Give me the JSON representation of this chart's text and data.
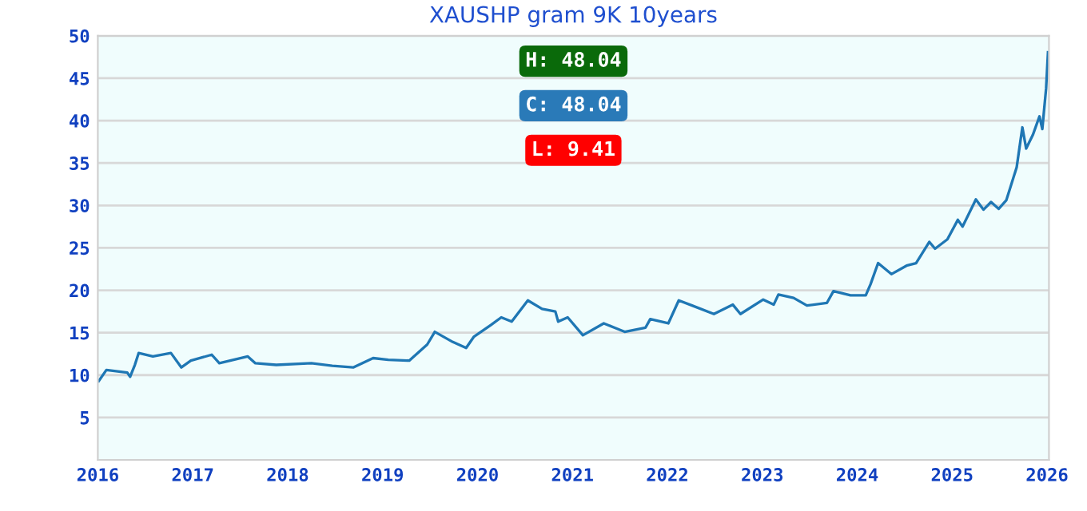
{
  "chart_data": {
    "type": "line",
    "title": "XAUSHP gram 9K 10years",
    "x": [
      2016.01,
      2016.09,
      2016.31,
      2016.34,
      2016.39,
      2016.43,
      2016.58,
      2016.77,
      2016.88,
      2016.98,
      2017.2,
      2017.28,
      2017.58,
      2017.66,
      2017.88,
      2018.25,
      2018.47,
      2018.69,
      2018.9,
      2019.06,
      2019.28,
      2019.47,
      2019.55,
      2019.74,
      2019.88,
      2019.96,
      2020.14,
      2020.25,
      2020.36,
      2020.53,
      2020.68,
      2020.82,
      2020.85,
      2020.95,
      2021.11,
      2021.33,
      2021.44,
      2021.55,
      2021.77,
      2021.82,
      2022.01,
      2022.12,
      2022.26,
      2022.49,
      2022.69,
      2022.77,
      2023.01,
      2023.12,
      2023.17,
      2023.33,
      2023.47,
      2023.68,
      2023.75,
      2023.93,
      2024.09,
      2024.14,
      2024.22,
      2024.36,
      2024.52,
      2024.62,
      2024.76,
      2024.82,
      2024.95,
      2025.06,
      2025.11,
      2025.25,
      2025.33,
      2025.41,
      2025.49,
      2025.57,
      2025.61,
      2025.68,
      2025.74,
      2025.78,
      2025.85,
      2025.92,
      2025.95,
      2025.99,
      2026.01
    ],
    "series": [
      {
        "color": "#1f77b4",
        "values": [
          9.3,
          10.6,
          10.3,
          9.8,
          11.2,
          12.6,
          12.2,
          12.6,
          10.9,
          11.7,
          12.4,
          11.4,
          12.2,
          11.4,
          11.2,
          11.4,
          11.1,
          10.9,
          12.0,
          11.8,
          11.7,
          13.6,
          15.1,
          13.9,
          13.2,
          14.5,
          15.9,
          16.8,
          16.3,
          18.8,
          17.8,
          17.5,
          16.3,
          16.8,
          14.7,
          16.1,
          15.6,
          15.1,
          15.6,
          16.6,
          16.1,
          18.8,
          18.2,
          17.2,
          18.3,
          17.2,
          18.9,
          18.3,
          19.5,
          19.1,
          18.2,
          18.5,
          19.9,
          19.4,
          19.4,
          20.7,
          23.2,
          21.9,
          22.9,
          23.2,
          25.7,
          24.9,
          26.0,
          28.3,
          27.5,
          30.7,
          29.5,
          30.4,
          29.6,
          30.6,
          32.0,
          34.5,
          39.2,
          36.7,
          38.3,
          40.5,
          39.0,
          43.8,
          48.04
        ]
      }
    ],
    "xlim": [
      2016,
      2026.02
    ],
    "xticks": [
      2016,
      2017,
      2018,
      2019,
      2020,
      2021,
      2022,
      2023,
      2024,
      2025,
      2026
    ],
    "ylim": [
      0,
      50
    ],
    "yticks": [
      5,
      10,
      15,
      20,
      25,
      30,
      35,
      40,
      45,
      50
    ],
    "grid": "y",
    "annotations": [
      "H: 48.04",
      "C: 48.04",
      "L: 9.41"
    ]
  }
}
